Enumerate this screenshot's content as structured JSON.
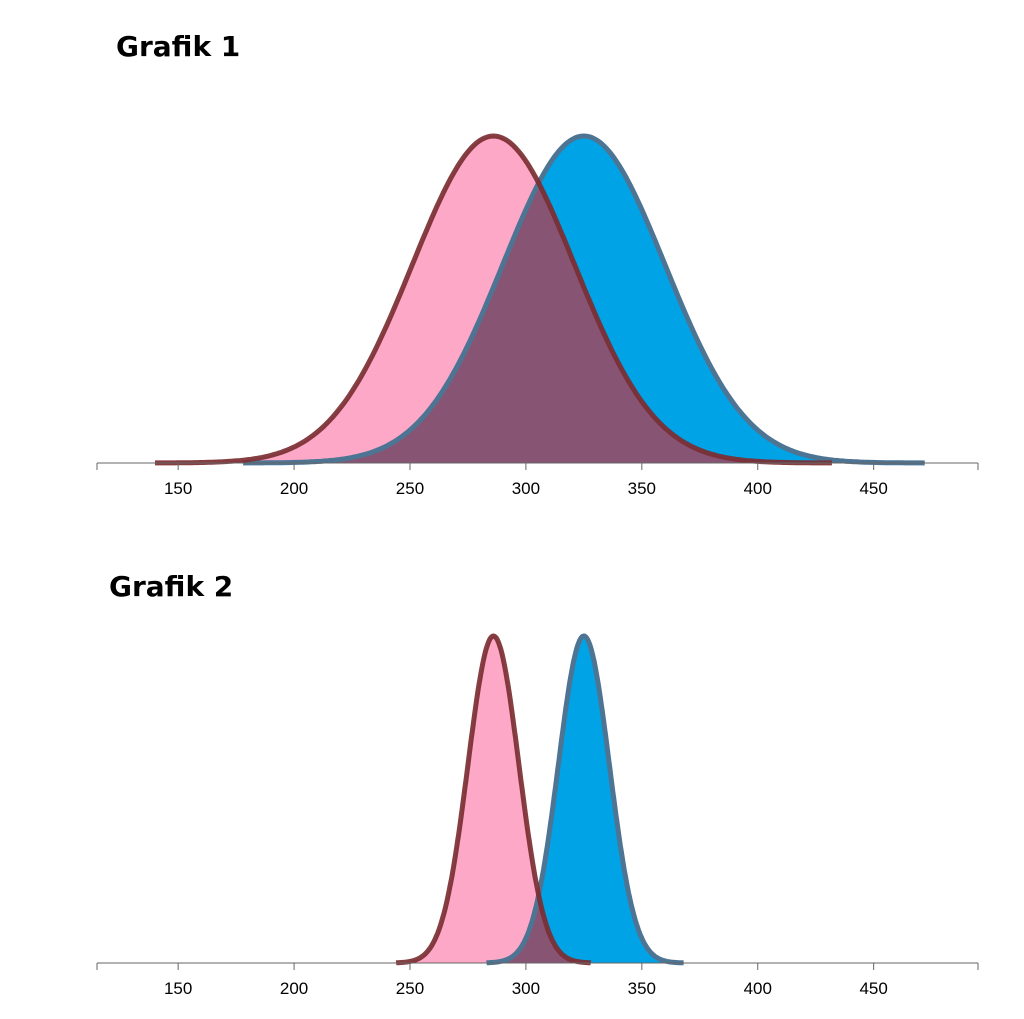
{
  "chart_data": [
    {
      "type": "area",
      "title": "Grafik 1",
      "xlabel": "",
      "ylabel": "",
      "xlim": [
        115,
        495
      ],
      "xticks": [
        "150",
        "200",
        "250",
        "300",
        "350",
        "400",
        "450"
      ],
      "grid": false,
      "series": [
        {
          "mean": 325,
          "sd": 35,
          "x_range": [
            178,
            472
          ],
          "fill": "#00a3e6",
          "stroke": "#4e7494"
        },
        {
          "mean": 286,
          "sd": 35,
          "x_range": [
            140,
            432
          ],
          "fill": "#b63a4d",
          "stroke": "#7b2e32",
          "fill_opacity": 0.75
        }
      ]
    },
    {
      "type": "area",
      "title": "Grafik 2",
      "xlabel": "",
      "ylabel": "",
      "xlim": [
        115,
        495
      ],
      "xticks": [
        "150",
        "200",
        "250",
        "300",
        "350",
        "400",
        "450"
      ],
      "grid": false,
      "series": [
        {
          "mean": 325,
          "sd": 11,
          "x_range": [
            283,
            368
          ],
          "fill": "#00a3e6",
          "stroke": "#4e7494"
        },
        {
          "mean": 286,
          "sd": 11,
          "x_range": [
            244,
            328
          ],
          "fill": "#b63a4d",
          "stroke": "#7b2e32",
          "fill_opacity": 0.75
        }
      ]
    }
  ],
  "colors": {
    "pink_region": "#fda8c7",
    "axis": "#666666"
  }
}
